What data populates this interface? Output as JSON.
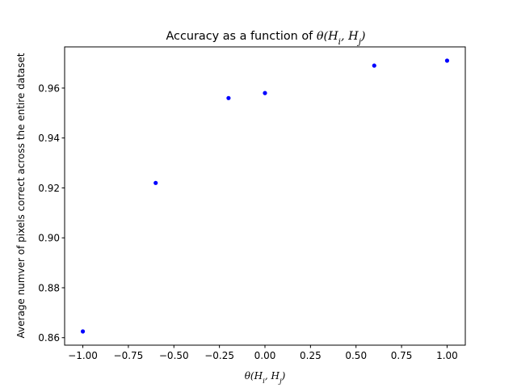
{
  "chart_data": {
    "type": "scatter",
    "title": "Accuracy as a function of θ(H_i, H_j)",
    "title_text": "Accuracy as a function of ",
    "title_math": "θ(H",
    "xlabel": "θ(H_i, H_j)",
    "ylabel": "Average numver of pixels correct across the entire dataset",
    "xlim": [
      -1.1,
      1.1
    ],
    "ylim": [
      0.857,
      0.9765
    ],
    "xticks": [
      -1.0,
      -0.75,
      -0.5,
      -0.25,
      0.0,
      0.25,
      0.5,
      0.75,
      1.0
    ],
    "xtick_labels": [
      "−1.00",
      "−0.75",
      "−0.50",
      "−0.25",
      "0.00",
      "0.25",
      "0.50",
      "0.75",
      "1.00"
    ],
    "yticks": [
      0.86,
      0.88,
      0.9,
      0.92,
      0.94,
      0.96
    ],
    "ytick_labels": [
      "0.86",
      "0.88",
      "0.90",
      "0.92",
      "0.94",
      "0.96"
    ],
    "grid": false,
    "marker_color": "#0000ff",
    "series": [
      {
        "x": [
          -1.0,
          -0.6,
          -0.2,
          0.0,
          0.6,
          1.0
        ],
        "y": [
          0.8625,
          0.922,
          0.956,
          0.958,
          0.969,
          0.971
        ]
      }
    ]
  }
}
